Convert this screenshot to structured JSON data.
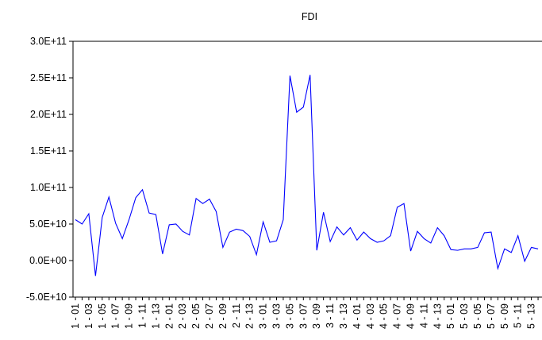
{
  "chart_data": {
    "type": "line",
    "title": "FDI",
    "categories": [
      "1 - 01",
      null,
      "1 - 03",
      null,
      "1 - 05",
      null,
      "1 - 07",
      null,
      "1 - 09",
      null,
      "1 - 11",
      null,
      "1 - 13",
      null,
      "2 - 01",
      null,
      "2 - 03",
      null,
      "2 - 05",
      null,
      "2 - 07",
      null,
      "2 - 09",
      null,
      "2 - 11",
      null,
      "2 - 13",
      null,
      "3 - 01",
      null,
      "3 - 03",
      null,
      "3 - 05",
      null,
      "3 - 07",
      null,
      "3 - 09",
      null,
      "3 - 11",
      null,
      "3 - 13",
      null,
      "4 - 01",
      null,
      "4 - 03",
      null,
      "4 - 05",
      null,
      "4 - 07",
      null,
      "4 - 09",
      null,
      "4 - 11",
      null,
      "4 - 13",
      null,
      "5 - 01",
      null,
      "5 - 03",
      null,
      "5 - 05",
      null,
      "5 - 07",
      null,
      "5 - 09",
      null,
      "5 - 11",
      null,
      "5 - 13",
      null
    ],
    "values": [
      56000000000.0,
      50000000000.0,
      64000000000.0,
      -21000000000.0,
      59000000000.0,
      87000000000.0,
      51000000000.0,
      30000000000.0,
      56000000000.0,
      86000000000.0,
      97000000000.0,
      65000000000.0,
      63000000000.0,
      9000000000.0,
      49000000000.0,
      50000000000.0,
      40000000000.0,
      35000000000.0,
      85000000000.0,
      78000000000.0,
      84000000000.0,
      67000000000.0,
      18000000000.0,
      39000000000.0,
      43000000000.0,
      41000000000.0,
      33000000000.0,
      8000000000.0,
      53000000000.0,
      25000000000.0,
      27000000000.0,
      56000000000.0,
      253000000000.0,
      203000000000.0,
      210000000000.0,
      254000000000.0,
      14000000000.0,
      66000000000.0,
      26000000000.0,
      46000000000.0,
      35000000000.0,
      45000000000.0,
      28000000000.0,
      39000000000.0,
      30000000000.0,
      25000000000.0,
      27000000000.0,
      34000000000.0,
      73000000000.0,
      78000000000.0,
      13000000000.0,
      40000000000.0,
      30000000000.0,
      24000000000.0,
      45000000000.0,
      34000000000.0,
      15000000000.0,
      14000000000.0,
      16000000000.0,
      16000000000.0,
      18000000000.0,
      38000000000.0,
      39000000000.0,
      -11000000000.0,
      16000000000.0,
      11000000000.0,
      34000000000.0,
      -1000000000.0,
      18000000000.0,
      16000000000.0
    ],
    "color": "#0000ff",
    "ylim": [
      -50000000000.0,
      300000000000.0
    ],
    "yticks": [
      {
        "value": -50000000000.0,
        "label": "-5.0E+10"
      },
      {
        "value": 0,
        "label": "0.0E+00"
      },
      {
        "value": 50000000000.0,
        "label": "5.0E+10"
      },
      {
        "value": 100000000000.0,
        "label": "1.0E+11"
      },
      {
        "value": 150000000000.0,
        "label": "1.5E+11"
      },
      {
        "value": 200000000000.0,
        "label": "2.0E+11"
      },
      {
        "value": 250000000000.0,
        "label": "2.5E+11"
      },
      {
        "value": 300000000000.0,
        "label": "3.0E+11"
      }
    ]
  }
}
